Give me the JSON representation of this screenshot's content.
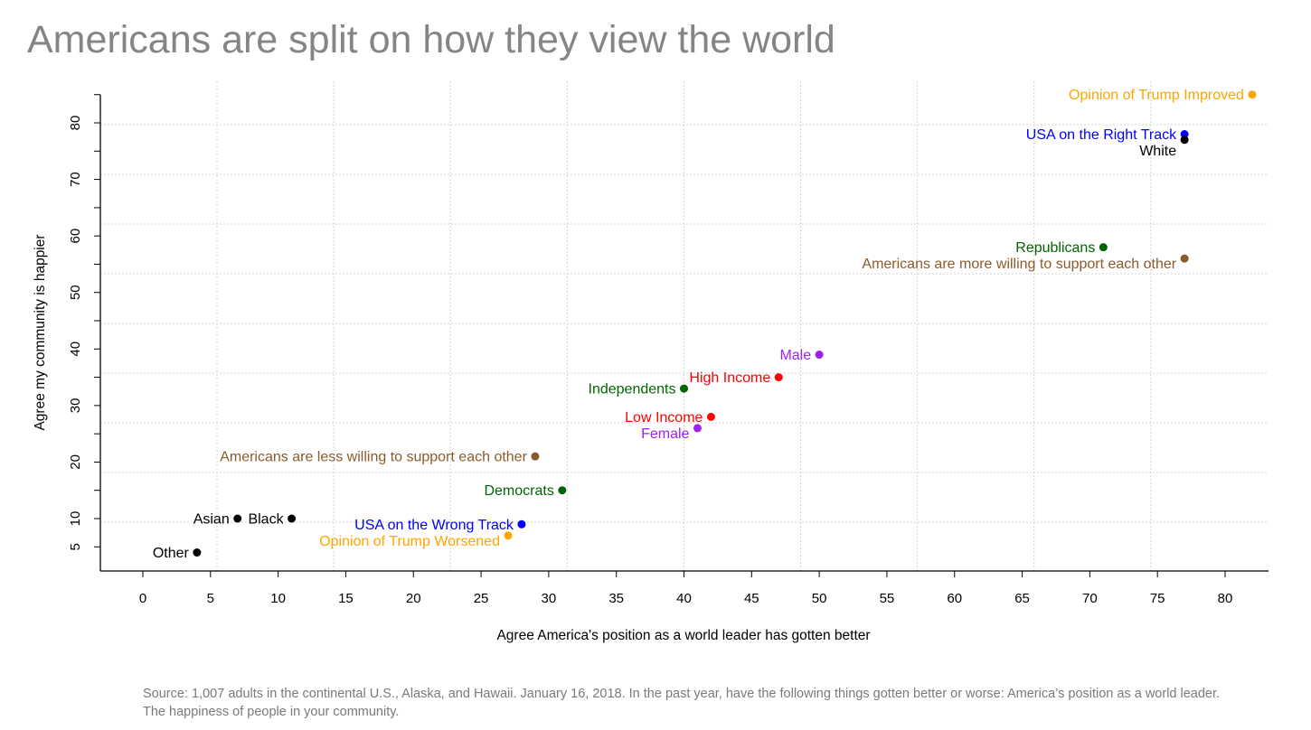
{
  "page": {
    "title": "Americans are split on how they view the world",
    "source": "Source: 1,007 adults in the continental U.S., Alaska, and Hawaii. January 16, 2018. In the past year, have the following things gotten better or worse: America’s position as a world leader. The happiness of people in your community."
  },
  "chart_data": {
    "type": "scatter",
    "title": "Americans are split on how they view the world",
    "xlabel": "Agree America's position as a world leader has gotten better",
    "ylabel": "Agree my community is happier",
    "xlim": [
      -3,
      83
    ],
    "ylim": [
      1,
      86
    ],
    "x_ticks": [
      0,
      5,
      10,
      15,
      20,
      25,
      30,
      35,
      40,
      45,
      50,
      55,
      60,
      65,
      70,
      75,
      80
    ],
    "y_ticks": [
      5,
      10,
      15,
      20,
      25,
      30,
      35,
      40,
      45,
      50,
      55,
      60,
      65,
      70,
      75,
      80,
      85
    ],
    "y_tick_labels": [
      5,
      10,
      20,
      30,
      40,
      50,
      60,
      70,
      80
    ],
    "grid": true,
    "legend": "none",
    "points": [
      {
        "label": "Opinion of Trump Improved",
        "x": 82,
        "y": 85,
        "color": "#FFA500"
      },
      {
        "label": "USA on the Right Track",
        "x": 77,
        "y": 78,
        "color": "#0000FF"
      },
      {
        "label": "White",
        "x": 77,
        "y": 77,
        "color": "#000000"
      },
      {
        "label": "Republicans",
        "x": 71,
        "y": 58,
        "color": "#006400"
      },
      {
        "label": "Americans are more willing to support each other",
        "x": 77,
        "y": 56,
        "color": "#8B5A2B"
      },
      {
        "label": "Male",
        "x": 50,
        "y": 39,
        "color": "#A020F0"
      },
      {
        "label": "High Income",
        "x": 47,
        "y": 35,
        "color": "#FF0000"
      },
      {
        "label": "Independents",
        "x": 40,
        "y": 33,
        "color": "#006400"
      },
      {
        "label": "Low Income",
        "x": 42,
        "y": 28,
        "color": "#FF0000"
      },
      {
        "label": "Female",
        "x": 41,
        "y": 26,
        "color": "#A020F0"
      },
      {
        "label": "Americans are less willing to support each other",
        "x": 29,
        "y": 21,
        "color": "#8B5A2B"
      },
      {
        "label": "Democrats",
        "x": 31,
        "y": 15,
        "color": "#006400"
      },
      {
        "label": "Asian",
        "x": 7,
        "y": 10,
        "color": "#000000"
      },
      {
        "label": "Black",
        "x": 11,
        "y": 10,
        "color": "#000000"
      },
      {
        "label": "USA on the Wrong Track",
        "x": 28,
        "y": 9,
        "color": "#0000FF"
      },
      {
        "label": "Opinion of Trump Worsened",
        "x": 27,
        "y": 7,
        "color": "#FFA500"
      },
      {
        "label": "Other",
        "x": 4,
        "y": 4,
        "color": "#000000"
      }
    ]
  }
}
